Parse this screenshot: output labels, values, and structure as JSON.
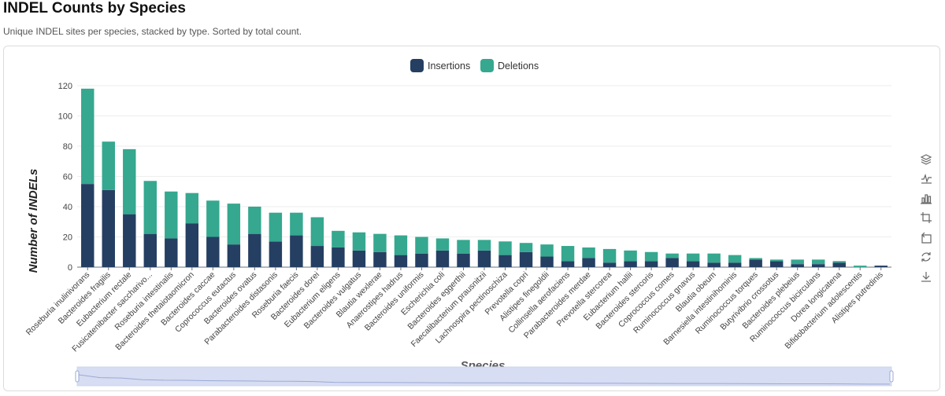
{
  "header": {
    "title": "INDEL Counts by Species",
    "subtitle": "Unique INDEL sites per species, stacked by type. Sorted by total count."
  },
  "colors": {
    "insertions": "#253f63",
    "deletions": "#35a88f"
  },
  "toolbox": {
    "icons": [
      "stack-icon",
      "line-chart-icon",
      "bar-chart-icon",
      "zoom-in-icon",
      "zoom-reset-icon",
      "restore-icon",
      "download-icon"
    ]
  },
  "chart_data": {
    "type": "bar",
    "stacked": true,
    "title": "",
    "xlabel": "Species",
    "ylabel": "Number of INDELs",
    "ylim": [
      0,
      120
    ],
    "yticks": [
      0,
      20,
      40,
      60,
      80,
      100,
      120
    ],
    "grid": true,
    "legend": "top-center",
    "categories": [
      "Roseburia inulinivorans",
      "Bacteroides fragilis",
      "Eubacterium rectale",
      "Fusicatenibacter saccharivo...",
      "Roseburia intestinalis",
      "Bacteroides thetaiotaomicron",
      "Bacteroides caccae",
      "Coprococcus eutactus",
      "Bacteroides ovatus",
      "Parabacteroides distasonis",
      "Roseburia faecis",
      "Bacteroides dorei",
      "Eubacterium eligens",
      "Bacteroides vulgatus",
      "Blautia wexlerae",
      "Anaerostipes hadrus",
      "Bacteroides uniformis",
      "Escherichia coli",
      "Bacteroides eggerthii",
      "Faecalibacterium prausnitzii",
      "Lachnospira pectinoschiza",
      "Prevotella copri",
      "Alistipes finegoldii",
      "Collinsella aerofaciens",
      "Parabacteroides merdae",
      "Prevotella stercorea",
      "Eubacterium hallii",
      "Bacteroides stercoris",
      "Coprococcus comes",
      "Ruminococcus gnavus",
      "Blautia obeum",
      "Barnesiella intestinihominis",
      "Ruminococcus torques",
      "Butyrivibrio crossotus",
      "Bacteroides plebeius",
      "Ruminococcus bicirculans",
      "Dorea longicatena",
      "Bifidobacterium adolescentis",
      "Alistipes putredinis"
    ],
    "series": [
      {
        "name": "Insertions",
        "values": [
          55,
          51,
          35,
          22,
          19,
          29,
          20,
          15,
          22,
          17,
          21,
          14,
          13,
          11,
          10,
          8,
          9,
          11,
          9,
          11,
          8,
          10,
          7,
          4,
          6,
          3,
          4,
          4,
          6,
          4,
          3,
          3,
          5,
          4,
          2,
          2,
          3,
          0,
          1
        ]
      },
      {
        "name": "Deletions",
        "values": [
          63,
          32,
          43,
          35,
          31,
          20,
          24,
          27,
          18,
          19,
          15,
          19,
          11,
          12,
          12,
          13,
          11,
          8,
          9,
          7,
          9,
          6,
          8,
          10,
          7,
          9,
          7,
          6,
          3,
          5,
          6,
          5,
          1,
          1,
          3,
          3,
          1,
          1,
          0
        ]
      }
    ]
  }
}
